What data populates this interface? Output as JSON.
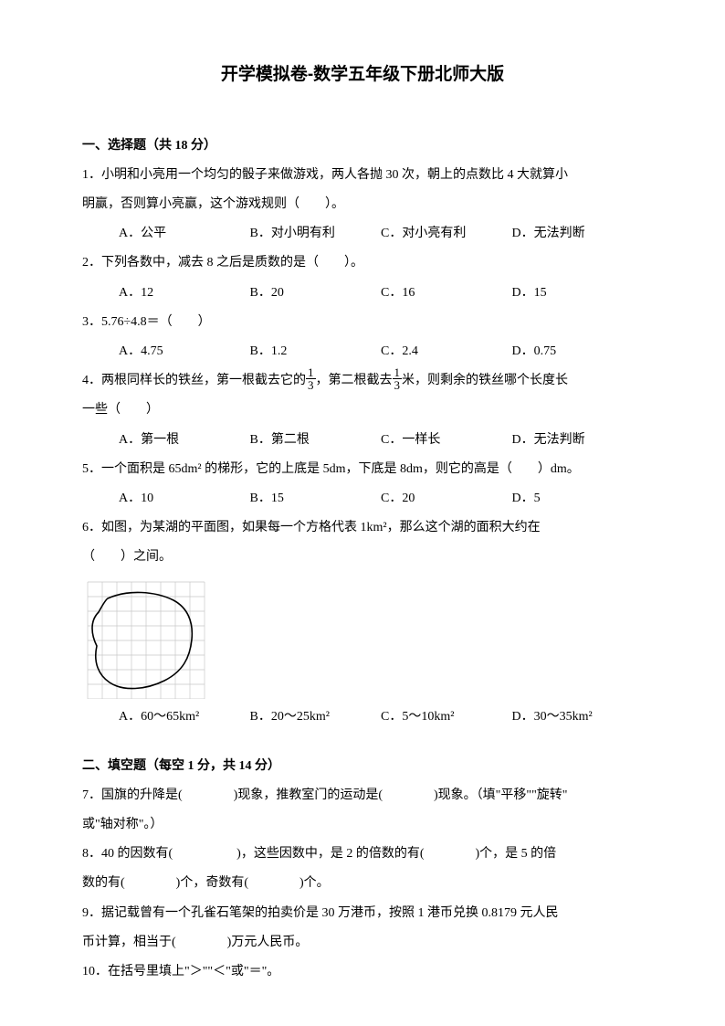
{
  "title": "开学模拟卷-数学五年级下册北师大版",
  "section1": {
    "header": "一、选择题（共 18 分）",
    "q1": {
      "text_a": "1．小明和小亮用一个均匀的骰子来做游戏，两人各抛 30 次，朝上的点数比 4 大就算小",
      "text_b": "明赢，否则算小亮赢，这个游戏规则（　　）。",
      "A": "A．公平",
      "B": "B．对小明有利",
      "C": "C．对小亮有利",
      "D": "D．无法判断"
    },
    "q2": {
      "text": "2．下列各数中，减去 8 之后是质数的是（　　）。",
      "A": "A．12",
      "B": "B．20",
      "C": "C．16",
      "D": "D．15"
    },
    "q3": {
      "text": "3．5.76÷4.8＝（　　）",
      "A": "A．4.75",
      "B": "B．1.2",
      "C": "C．2.4",
      "D": "D．0.75"
    },
    "q4": {
      "pre": "4．两根同样长的铁丝，第一根截去它的",
      "mid": "，第二根截去",
      "post": "米，则剩余的铁丝哪个长度长",
      "tail": "一些（　　）",
      "A": "A．第一根",
      "B": "B．第二根",
      "C": "C．一样长",
      "D": "D．无法判断"
    },
    "q5": {
      "text": "5．一个面积是 65dm² 的梯形，它的上底是 5dm，下底是 8dm，则它的高是（　　）dm。",
      "A": "A．10",
      "B": "B．15",
      "C": "C．20",
      "D": "D．5"
    },
    "q6": {
      "text_a": "6．如图，为某湖的平面图，如果每一个方格代表 1km²，那么这个湖的面积大约在",
      "text_b": "（　　）之间。",
      "A": "A．60～65km²",
      "B": "B．20～25km²",
      "C": "C．5～10km²",
      "D": "D．30～35km²"
    }
  },
  "section2": {
    "header": "二、填空题（每空 1 分，共 14 分）",
    "q7": "7．国旗的升降是(　　　　)现象，推教室门的运动是(　　　　)现象。（填\"平移\"\"旋转\"",
    "q7b": "或\"轴对称\"。）",
    "q8": "8．40 的因数有(　　　　　)，这些因数中，是 2 的倍数的有(　　　　)个，是 5 的倍",
    "q8b": "数的有(　　　　)个，奇数有(　　　　)个。",
    "q9": "9．据记载曾有一个孔雀石笔架的拍卖价是 30 万港币，按照 1 港币兑换 0.8179 元人民",
    "q9b": "币计算，相当于(　　　　)万元人民币。",
    "q10": "10．在括号里填上\"＞\"\"＜\"或\"＝\"。"
  },
  "figure": {
    "grid_color": "#c8c8c8",
    "line_color": "#000000",
    "cols": 8,
    "rows": 8,
    "cell": 16
  }
}
